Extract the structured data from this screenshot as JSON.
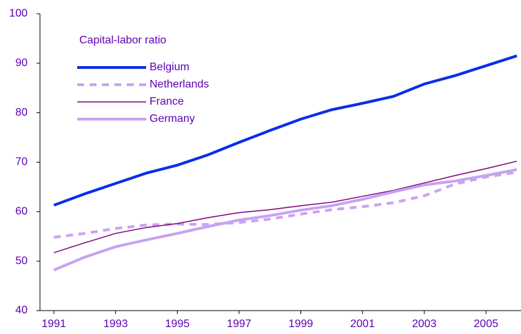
{
  "chart_data": {
    "type": "line",
    "legend_title": "Capital-labor ratio",
    "x": [
      1991,
      1992,
      1993,
      1994,
      1995,
      1996,
      1997,
      1998,
      1999,
      2000,
      2001,
      2002,
      2003,
      2004,
      2005,
      2006
    ],
    "series": [
      {
        "name": "Belgium",
        "color": "#0a2ee8",
        "width": 4,
        "dash": false,
        "values": [
          61.3,
          63.6,
          65.7,
          67.8,
          69.4,
          71.5,
          74.0,
          76.4,
          78.7,
          80.6,
          81.9,
          83.3,
          85.8,
          87.5,
          89.5,
          91.5
        ]
      },
      {
        "name": "Netherlands",
        "color": "#c9a3f2",
        "width": 4,
        "dash": true,
        "values": [
          54.8,
          55.6,
          56.6,
          57.3,
          57.5,
          57.4,
          57.8,
          58.5,
          59.5,
          60.4,
          61.0,
          61.8,
          63.2,
          65.6,
          67.0,
          68.0
        ]
      },
      {
        "name": "France",
        "color": "#800080",
        "width": 1.5,
        "dash": false,
        "values": [
          51.7,
          53.7,
          55.6,
          56.8,
          57.6,
          58.8,
          59.8,
          60.4,
          61.2,
          61.9,
          63.1,
          64.3,
          65.8,
          67.3,
          68.7,
          70.2
        ]
      },
      {
        "name": "Germany",
        "color": "#c7a2f2",
        "width": 4,
        "dash": false,
        "values": [
          48.2,
          50.8,
          52.9,
          54.3,
          55.6,
          57.0,
          58.3,
          59.2,
          60.3,
          61.2,
          62.5,
          64.0,
          65.4,
          66.2,
          67.3,
          68.5
        ]
      }
    ],
    "xlim": [
      1990.55,
      2006
    ],
    "xticks": [
      1991,
      1993,
      1995,
      1997,
      1999,
      2001,
      2003,
      2005
    ],
    "ylim": [
      40,
      100
    ],
    "yticks": [
      40,
      50,
      60,
      70,
      80,
      90,
      100
    ]
  }
}
